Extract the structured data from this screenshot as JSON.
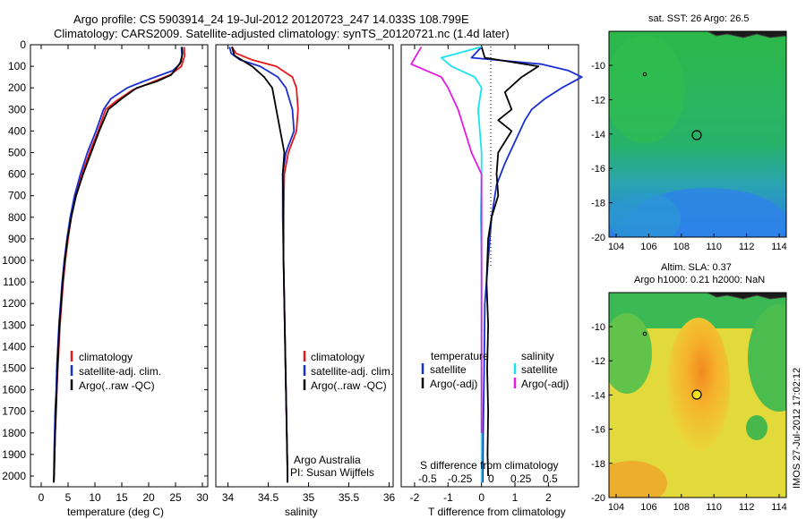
{
  "header": {
    "line1": "Argo profile: CS 5903914_24 19-Jul-2012 20120723_247 14.033S 108.799E",
    "line2": "Climatology: CARS2009. Satellite-adjusted climatology: synTS_20120721.nc (1.4d later)"
  },
  "colors": {
    "climatology": "#e8171b",
    "satellite": "#1a2fd1",
    "argo": "#000000",
    "sat_s": "#19e3f0",
    "argo_s": "#e619e6"
  },
  "chart_data": [
    {
      "id": "temperature",
      "type": "line",
      "xlabel": "temperature (deg C)",
      "ylabel": "",
      "xlim": [
        -2,
        31
      ],
      "ylim": [
        2050,
        0
      ],
      "xticks": [
        0,
        5,
        10,
        15,
        20,
        25,
        30
      ],
      "yticks": [
        0,
        100,
        200,
        300,
        400,
        500,
        600,
        700,
        800,
        900,
        1000,
        1100,
        1200,
        1300,
        1400,
        1500,
        1600,
        1700,
        1800,
        1900,
        2000
      ],
      "legend": [
        "climatology",
        "satellite-adj. clim.",
        "Argo(..raw -QC)"
      ],
      "series": [
        {
          "name": "climatology",
          "color": "red",
          "points": [
            [
              26.6,
              10
            ],
            [
              26.7,
              50
            ],
            [
              26.1,
              100
            ],
            [
              24,
              140
            ],
            [
              21,
              170
            ],
            [
              17,
              210
            ],
            [
              14,
              260
            ],
            [
              12,
              300
            ],
            [
              10.6,
              400
            ],
            [
              9,
              500
            ],
            [
              7.6,
              600
            ],
            [
              6.4,
              700
            ],
            [
              5.6,
              800
            ],
            [
              5,
              900
            ],
            [
              4.5,
              1000
            ],
            [
              4.1,
              1100
            ],
            [
              3.8,
              1200
            ],
            [
              3.5,
              1300
            ],
            [
              3.3,
              1400
            ],
            [
              3.1,
              1500
            ],
            [
              2.9,
              1600
            ],
            [
              2.8,
              1700
            ],
            [
              2.6,
              1800
            ],
            [
              2.5,
              1900
            ],
            [
              2.4,
              2000
            ],
            [
              2.35,
              2030
            ]
          ]
        },
        {
          "name": "satellite",
          "color": "blue",
          "points": [
            [
              26.1,
              10
            ],
            [
              26.2,
              50
            ],
            [
              25.8,
              90
            ],
            [
              24.5,
              120
            ],
            [
              19,
              170
            ],
            [
              16,
              200
            ],
            [
              13,
              250
            ],
            [
              11.6,
              300
            ],
            [
              10.2,
              400
            ],
            [
              8.6,
              500
            ],
            [
              7.3,
              600
            ],
            [
              6.2,
              700
            ],
            [
              5.4,
              800
            ],
            [
              4.8,
              900
            ],
            [
              4.3,
              1000
            ],
            [
              3.9,
              1100
            ],
            [
              3.6,
              1200
            ],
            [
              3.3,
              1300
            ],
            [
              3.1,
              1400
            ],
            [
              2.9,
              1500
            ],
            [
              2.8,
              1600
            ],
            [
              2.6,
              1700
            ],
            [
              2.5,
              1800
            ],
            [
              2.4,
              1900
            ],
            [
              2.35,
              2000
            ],
            [
              2.3,
              2030
            ]
          ]
        },
        {
          "name": "argo",
          "color": "black",
          "points": [
            [
              26.2,
              10
            ],
            [
              26.3,
              40
            ],
            [
              26,
              80
            ],
            [
              24.2,
              140
            ],
            [
              21.5,
              170
            ],
            [
              17.8,
              200
            ],
            [
              15,
              250
            ],
            [
              12.5,
              300
            ],
            [
              10.8,
              400
            ],
            [
              9.3,
              500
            ],
            [
              7.8,
              600
            ],
            [
              6.5,
              700
            ],
            [
              5.6,
              800
            ],
            [
              4.9,
              900
            ],
            [
              4.4,
              1000
            ],
            [
              4,
              1100
            ],
            [
              3.7,
              1200
            ],
            [
              3.4,
              1300
            ],
            [
              3.2,
              1400
            ],
            [
              3,
              1500
            ],
            [
              2.9,
              1600
            ],
            [
              2.7,
              1700
            ],
            [
              2.6,
              1800
            ],
            [
              2.5,
              1900
            ],
            [
              2.4,
              2000
            ],
            [
              2.35,
              2030
            ]
          ]
        }
      ]
    },
    {
      "id": "salinity",
      "type": "line",
      "xlabel": "salinity",
      "xlim": [
        33.85,
        36.05
      ],
      "ylim": [
        2050,
        0
      ],
      "xticks": [
        34,
        34.5,
        35,
        35.5,
        36
      ],
      "legend": [
        "climatology",
        "satellite-adj. clim.",
        "Argo(..raw -QC)"
      ],
      "series": [
        {
          "name": "climatology",
          "color": "red",
          "points": [
            [
              34.05,
              10
            ],
            [
              34.1,
              40
            ],
            [
              34.3,
              70
            ],
            [
              34.6,
              100
            ],
            [
              34.8,
              150
            ],
            [
              34.85,
              200
            ],
            [
              34.87,
              300
            ],
            [
              34.85,
              400
            ],
            [
              34.75,
              500
            ],
            [
              34.7,
              600
            ],
            [
              34.69,
              800
            ],
            [
              34.69,
              1000
            ],
            [
              34.7,
              1200
            ],
            [
              34.71,
              1400
            ],
            [
              34.72,
              1600
            ],
            [
              34.73,
              1800
            ],
            [
              34.74,
              2000
            ],
            [
              34.74,
              2030
            ]
          ]
        },
        {
          "name": "satellite",
          "color": "blue",
          "points": [
            [
              34.02,
              10
            ],
            [
              34.04,
              40
            ],
            [
              34.15,
              70
            ],
            [
              34.4,
              100
            ],
            [
              34.62,
              150
            ],
            [
              34.72,
              200
            ],
            [
              34.8,
              300
            ],
            [
              34.82,
              400
            ],
            [
              34.72,
              500
            ],
            [
              34.68,
              600
            ],
            [
              34.68,
              800
            ],
            [
              34.69,
              1000
            ],
            [
              34.7,
              1200
            ],
            [
              34.71,
              1400
            ],
            [
              34.72,
              1600
            ],
            [
              34.73,
              1800
            ],
            [
              34.74,
              2000
            ],
            [
              34.74,
              2030
            ]
          ]
        },
        {
          "name": "argo",
          "color": "black",
          "points": [
            [
              34.05,
              10
            ],
            [
              34.08,
              50
            ],
            [
              34.3,
              100
            ],
            [
              34.45,
              150
            ],
            [
              34.55,
              200
            ],
            [
              34.6,
              300
            ],
            [
              34.65,
              400
            ],
            [
              34.7,
              500
            ],
            [
              34.68,
              600
            ],
            [
              34.69,
              800
            ],
            [
              34.69,
              1000
            ],
            [
              34.7,
              1200
            ],
            [
              34.71,
              1400
            ],
            [
              34.72,
              1600
            ],
            [
              34.73,
              1800
            ],
            [
              34.74,
              2000
            ],
            [
              34.74,
              2030
            ]
          ]
        }
      ],
      "annotations": [
        "Argo Australia",
        "PI: Susan Wijffels"
      ]
    },
    {
      "id": "difference",
      "type": "line",
      "xlabel": "T difference from climatology",
      "xlabel2": "S difference from climatology",
      "xlim": [
        -2.4,
        2.9
      ],
      "ylim": [
        2050,
        0
      ],
      "xticks": [
        -2,
        -1,
        0,
        1,
        2
      ],
      "xticks_s": [
        "-0.5",
        "-0.25",
        "0",
        "0.25",
        "0.5"
      ],
      "legend_headers": [
        "temperature",
        "salinity"
      ],
      "legend": [
        "satellite",
        "Argo(-adj)",
        "satellite",
        "Argo(-adj)"
      ],
      "series": [
        {
          "name": "temperature satellite",
          "color": "blue",
          "points": [
            [
              0,
              10
            ],
            [
              -0.3,
              60
            ],
            [
              1.8,
              90
            ],
            [
              2.6,
              120
            ],
            [
              3,
              150
            ],
            [
              2.4,
              200
            ],
            [
              1.9,
              250
            ],
            [
              1.5,
              300
            ],
            [
              1.3,
              350
            ],
            [
              1.0,
              450
            ],
            [
              0.7,
              550
            ],
            [
              0.45,
              650
            ],
            [
              0.3,
              800
            ],
            [
              0.2,
              1000
            ],
            [
              0.1,
              1200
            ],
            [
              0.08,
              1500
            ],
            [
              0.05,
              1800
            ],
            [
              0.04,
              2000
            ],
            [
              0.04,
              2030
            ]
          ]
        },
        {
          "name": "temperature argo",
          "color": "black",
          "points": [
            [
              0,
              10
            ],
            [
              0.1,
              60
            ],
            [
              1.7,
              100
            ],
            [
              1.2,
              150
            ],
            [
              0.7,
              220
            ],
            [
              0.9,
              300
            ],
            [
              0.5,
              350
            ],
            [
              0.9,
              400
            ],
            [
              0.5,
              500
            ],
            [
              0.45,
              600
            ],
            [
              0.5,
              700
            ],
            [
              0.3,
              800
            ],
            [
              0.2,
              900
            ],
            [
              0.15,
              1100
            ],
            [
              0.2,
              1300
            ],
            [
              0.17,
              1500
            ],
            [
              0.2,
              1700
            ],
            [
              0.18,
              1900
            ],
            [
              0.2,
              2000
            ]
          ]
        },
        {
          "name": "salinity satellite",
          "color": "cyan",
          "points": [
            [
              0,
              10
            ],
            [
              -1.2,
              60
            ],
            [
              -0.9,
              100
            ],
            [
              -0.2,
              150
            ],
            [
              0,
              200
            ],
            [
              -0.1,
              300
            ],
            [
              -0.05,
              400
            ],
            [
              0,
              500
            ],
            [
              0,
              600
            ],
            [
              -0.02,
              800
            ],
            [
              0,
              1000
            ],
            [
              0,
              1200
            ],
            [
              0,
              1500
            ],
            [
              0,
              1800
            ],
            [
              0,
              2030
            ]
          ]
        },
        {
          "name": "salinity argo",
          "color": "magenta",
          "points": [
            [
              -1.8,
              10
            ],
            [
              -2.1,
              90
            ],
            [
              -1.2,
              150
            ],
            [
              -1,
              200
            ],
            [
              -0.7,
              300
            ],
            [
              -0.5,
              400
            ],
            [
              -0.3,
              500
            ],
            [
              0,
              600
            ],
            [
              0,
              800
            ],
            [
              0,
              1000
            ],
            [
              0,
              1200
            ],
            [
              0,
              1500
            ],
            [
              0,
              1800
            ]
          ]
        }
      ]
    }
  ],
  "maps": {
    "sst": {
      "title": "sat. SST: 26 Argo: 26.5",
      "xticks": [
        "104",
        "106",
        "108",
        "110",
        "112",
        "114"
      ],
      "yticks": [
        "-10",
        "-12",
        "-14",
        "-16",
        "-18",
        "-20"
      ]
    },
    "sla": {
      "title1": "Altim. SLA: 0.37",
      "title2": "Argo h1000: 0.21 h2000: NaN",
      "xticks": [
        "104",
        "106",
        "108",
        "110",
        "112",
        "114"
      ],
      "yticks": [
        "-10",
        "-12",
        "-14",
        "-16",
        "-18",
        "-20"
      ]
    }
  },
  "footer": {
    "credit": "IMOS 27-Jul-2012 17:02:12"
  }
}
